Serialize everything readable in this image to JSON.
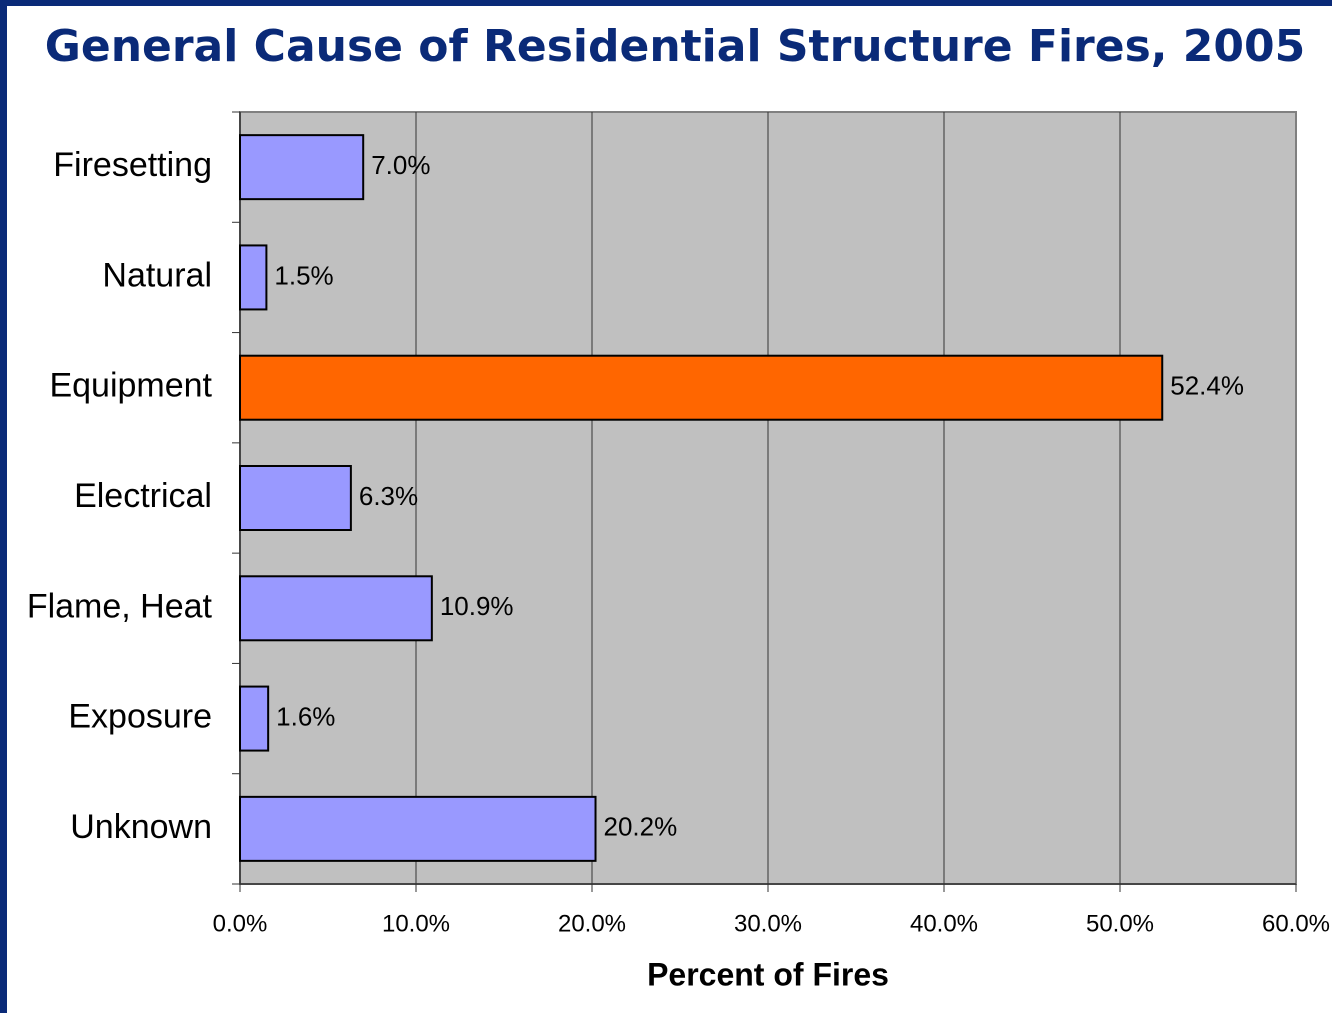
{
  "chart_data": {
    "type": "bar",
    "orientation": "horizontal",
    "title": "General Cause of Residential Structure Fires, 2005",
    "categories": [
      "Firesetting",
      "Natural",
      "Equipment",
      "Electrical",
      "Flame, Heat",
      "Exposure",
      "Unknown"
    ],
    "values": [
      7.0,
      1.5,
      52.4,
      6.3,
      10.9,
      1.6,
      20.2
    ],
    "value_labels": [
      "7.0%",
      "1.5%",
      "52.4%",
      "6.3%",
      "10.9%",
      "1.6%",
      "20.2%"
    ],
    "colors": [
      "#9999ff",
      "#9999ff",
      "#ff6600",
      "#9999ff",
      "#9999ff",
      "#9999ff",
      "#9999ff"
    ],
    "xlabel": "Percent of Fires",
    "xlim": [
      0,
      60
    ],
    "xticks": [
      {
        "value": 0,
        "label": "0.0%"
      },
      {
        "value": 10,
        "label": "10.0%"
      },
      {
        "value": 20,
        "label": "20.0%"
      },
      {
        "value": 30,
        "label": "30.0%"
      },
      {
        "value": 40,
        "label": "40.0%"
      },
      {
        "value": 50,
        "label": "50.0%"
      },
      {
        "value": 60,
        "label": "60.0%"
      }
    ],
    "grid": true
  }
}
